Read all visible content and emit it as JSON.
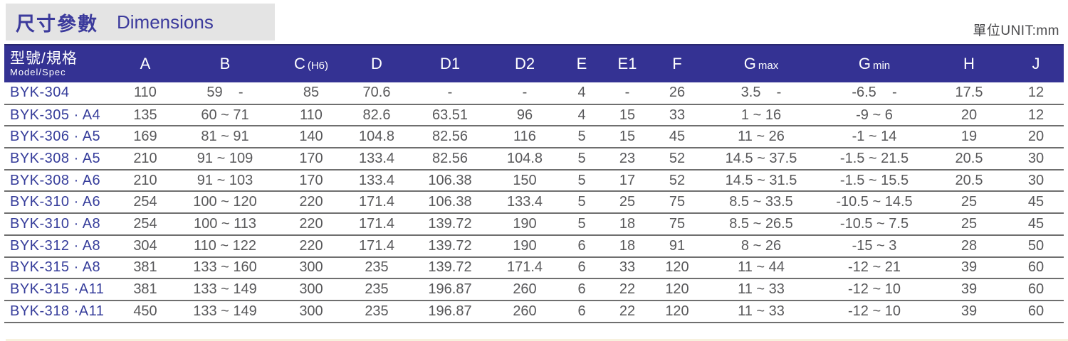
{
  "title": {
    "zh": "尺寸參數",
    "en": "Dimensions"
  },
  "unit_label": "單位UNIT:mm",
  "colors": {
    "header_bg": "#343293",
    "header_text": "#ffffff",
    "title_text": "#3b3a9c",
    "title_bar_bg": "#e4e4e4",
    "model_text": "#363d9b",
    "value_text": "#58585a",
    "row_line": "#6f6f6f",
    "unit_text": "#4a4a4c",
    "next_section_strip": "#f7f1dd"
  },
  "table": {
    "header": {
      "model_zh": "型號/規格",
      "model_en": "Model/Spec",
      "columns": [
        {
          "main": "A"
        },
        {
          "main": "B"
        },
        {
          "main": "C",
          "sub": "(H6)"
        },
        {
          "main": "D"
        },
        {
          "main": "D1"
        },
        {
          "main": "D2"
        },
        {
          "main": "E"
        },
        {
          "main": "E1"
        },
        {
          "main": "F"
        },
        {
          "main": "G",
          "sub": "max"
        },
        {
          "main": "G",
          "sub": "min"
        },
        {
          "main": "H"
        },
        {
          "main": "J"
        }
      ]
    },
    "rows": [
      {
        "model": "BYK-304",
        "values": [
          "110",
          "59    -",
          "85",
          "70.6",
          "-",
          "-",
          "4",
          "-",
          "26",
          "3.5    -",
          "-6.5    -",
          "17.5",
          "12"
        ]
      },
      {
        "model": "BYK-305 · A4",
        "values": [
          "135",
          "60 ~ 71",
          "110",
          "82.6",
          "63.51",
          "96",
          "4",
          "15",
          "33",
          "1 ~ 16",
          "-9 ~ 6",
          "20",
          "12"
        ]
      },
      {
        "model": "BYK-306 · A5",
        "values": [
          "169",
          "81 ~ 91",
          "140",
          "104.8",
          "82.56",
          "116",
          "5",
          "15",
          "45",
          "11 ~ 26",
          "-1 ~ 14",
          "19",
          "20"
        ]
      },
      {
        "model": "BYK-308 · A5",
        "values": [
          "210",
          "91 ~ 109",
          "170",
          "133.4",
          "82.56",
          "104.8",
          "5",
          "23",
          "52",
          "14.5 ~ 37.5",
          "-1.5 ~ 21.5",
          "20.5",
          "30"
        ]
      },
      {
        "model": "BYK-308 · A6",
        "values": [
          "210",
          "91 ~ 103",
          "170",
          "133.4",
          "106.38",
          "150",
          "5",
          "17",
          "52",
          "14.5 ~ 31.5",
          "-1.5 ~ 15.5",
          "20.5",
          "30"
        ]
      },
      {
        "model": "BYK-310 · A6",
        "values": [
          "254",
          "100 ~ 120",
          "220",
          "171.4",
          "106.38",
          "133.4",
          "5",
          "25",
          "75",
          "8.5 ~ 33.5",
          "-10.5 ~ 14.5",
          "25",
          "45"
        ]
      },
      {
        "model": "BYK-310 · A8",
        "values": [
          "254",
          "100 ~ 113",
          "220",
          "171.4",
          "139.72",
          "190",
          "5",
          "18",
          "75",
          "8.5 ~ 26.5",
          "-10.5 ~ 7.5",
          "25",
          "45"
        ]
      },
      {
        "model": "BYK-312 · A8",
        "values": [
          "304",
          "110 ~ 122",
          "220",
          "171.4",
          "139.72",
          "190",
          "6",
          "18",
          "91",
          "8 ~ 26",
          "-15 ~ 3",
          "28",
          "50"
        ]
      },
      {
        "model": "BYK-315 · A8",
        "values": [
          "381",
          "133 ~ 160",
          "300",
          "235",
          "139.72",
          "171.4",
          "6",
          "33",
          "120",
          "11 ~ 44",
          "-12 ~ 21",
          "39",
          "60"
        ]
      },
      {
        "model": "BYK-315 ·A11",
        "values": [
          "381",
          "133 ~ 149",
          "300",
          "235",
          "196.87",
          "260",
          "6",
          "22",
          "120",
          "11 ~ 33",
          "-12 ~ 10",
          "39",
          "60"
        ]
      },
      {
        "model": "BYK-318 ·A11",
        "values": [
          "450",
          "133 ~ 149",
          "300",
          "235",
          "196.87",
          "260",
          "6",
          "22",
          "120",
          "11 ~ 33",
          "-12 ~ 10",
          "39",
          "60"
        ]
      }
    ]
  }
}
